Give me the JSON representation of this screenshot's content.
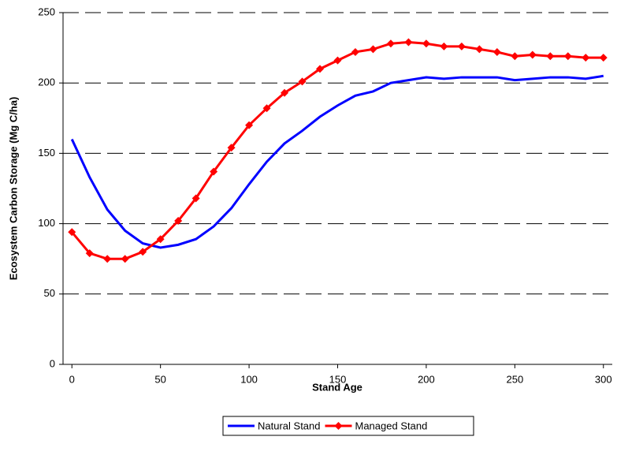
{
  "chart_data": {
    "type": "line",
    "x_label": "Stand Age",
    "y_label": "Ecosystem Carbon Storage (Mg C/ha)",
    "x": [
      0,
      10,
      20,
      30,
      40,
      50,
      60,
      70,
      80,
      90,
      100,
      110,
      120,
      130,
      140,
      150,
      160,
      170,
      180,
      190,
      200,
      210,
      220,
      230,
      240,
      250,
      260,
      270,
      280,
      290,
      300
    ],
    "series": [
      {
        "name": "Natural Stand",
        "color": "#0000ff",
        "marker": false,
        "values": [
          160,
          133,
          110,
          95,
          86,
          83,
          85,
          89,
          98,
          111,
          128,
          144,
          157,
          166,
          176,
          184,
          191,
          194,
          200,
          202,
          204,
          203,
          204,
          204,
          204,
          202,
          203,
          204,
          204,
          203,
          205
        ]
      },
      {
        "name": "Managed Stand",
        "color": "#ff0000",
        "marker": true,
        "values": [
          94,
          79,
          75,
          75,
          80,
          89,
          102,
          118,
          137,
          154,
          170,
          182,
          193,
          201,
          210,
          216,
          222,
          224,
          228,
          229,
          228,
          226,
          226,
          224,
          222,
          219,
          220,
          219,
          219,
          218,
          218
        ]
      }
    ],
    "xlim": [
      -5,
      305
    ],
    "xticks": [
      0,
      50,
      100,
      150,
      200,
      250,
      300
    ],
    "ylim": [
      0,
      250
    ],
    "yticks": [
      0,
      50,
      100,
      150,
      200,
      250
    ],
    "grid": true,
    "legend": "bottom"
  }
}
